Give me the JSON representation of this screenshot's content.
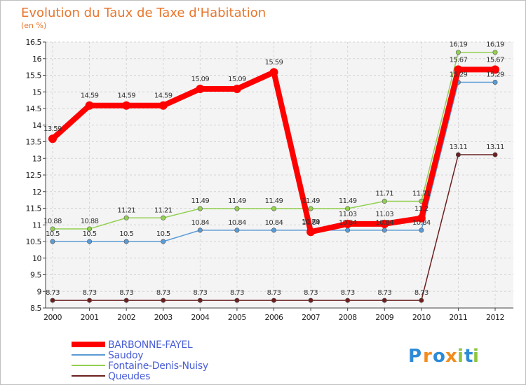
{
  "chart_data": {
    "type": "line",
    "title": "Evolution du Taux de Taxe d'Habitation",
    "subtitle": "(en %)",
    "categories": [
      "2000",
      "2001",
      "2002",
      "2003",
      "2004",
      "2005",
      "2006",
      "2007",
      "2008",
      "2009",
      "2010",
      "2011",
      "2012"
    ],
    "ylim": [
      8.5,
      16.5
    ],
    "yticks": [
      "8.5",
      "9",
      "9.5",
      "10",
      "10.5",
      "11",
      "11.5",
      "12",
      "12.5",
      "13",
      "13.5",
      "14",
      "14.5",
      "15",
      "15.5",
      "16",
      "16.5"
    ],
    "grid": true,
    "legend_position": "bottom-left",
    "series": [
      {
        "name": "BARBONNE-FAYEL",
        "color": "#ff0000",
        "values": [
          13.59,
          14.59,
          14.59,
          14.59,
          15.09,
          15.09,
          15.59,
          10.79,
          11.03,
          11.03,
          11.2,
          15.67,
          15.67
        ],
        "labels": [
          "13.59",
          "14.59",
          "14.59",
          "14.59",
          "15.09",
          "15.09",
          "15.59",
          "10.79",
          "11.03",
          "11.03",
          "11.2",
          "15.67",
          "15.67"
        ]
      },
      {
        "name": "Saudoy",
        "color": "#5b9bd5",
        "values": [
          10.5,
          10.5,
          10.5,
          10.5,
          10.84,
          10.84,
          10.84,
          10.84,
          10.84,
          10.84,
          10.84,
          15.29,
          15.29
        ],
        "labels": [
          "10.5",
          "10.5",
          "10.5",
          "10.5",
          "10.84",
          "10.84",
          "10.84",
          "10.84",
          "10.84",
          "10.84",
          "10.84",
          "15.29",
          "15.29"
        ]
      },
      {
        "name": "Fontaine-Denis-Nuisy",
        "color": "#92d050",
        "values": [
          10.88,
          10.88,
          11.21,
          11.21,
          11.49,
          11.49,
          11.49,
          11.49,
          11.49,
          11.71,
          11.71,
          16.19,
          16.19
        ],
        "labels": [
          "10.88",
          "10.88",
          "11.21",
          "11.21",
          "11.49",
          "11.49",
          "11.49",
          "11.49",
          "11.49",
          "11.71",
          "11.71",
          "16.19",
          "16.19"
        ]
      },
      {
        "name": "Queudes",
        "color": "#6b1f1f",
        "values": [
          8.73,
          8.73,
          8.73,
          8.73,
          8.73,
          8.73,
          8.73,
          8.73,
          8.73,
          8.73,
          8.73,
          13.11,
          13.11
        ],
        "labels": [
          "8.73",
          "8.73",
          "8.73",
          "8.73",
          "8.73",
          "8.73",
          "8.73",
          "8.73",
          "8.73",
          "8.73",
          "8.73",
          "13.11",
          "13.11"
        ]
      }
    ]
  },
  "logo": {
    "letters": [
      "P",
      "r",
      "o",
      "x",
      "i",
      "t",
      "i"
    ],
    "colors": [
      "#2e8bd6",
      "#f28c1c",
      "#2e8bd6",
      "#f28c1c",
      "#8dc63f",
      "#2e8bd6",
      "#8dc63f"
    ]
  }
}
